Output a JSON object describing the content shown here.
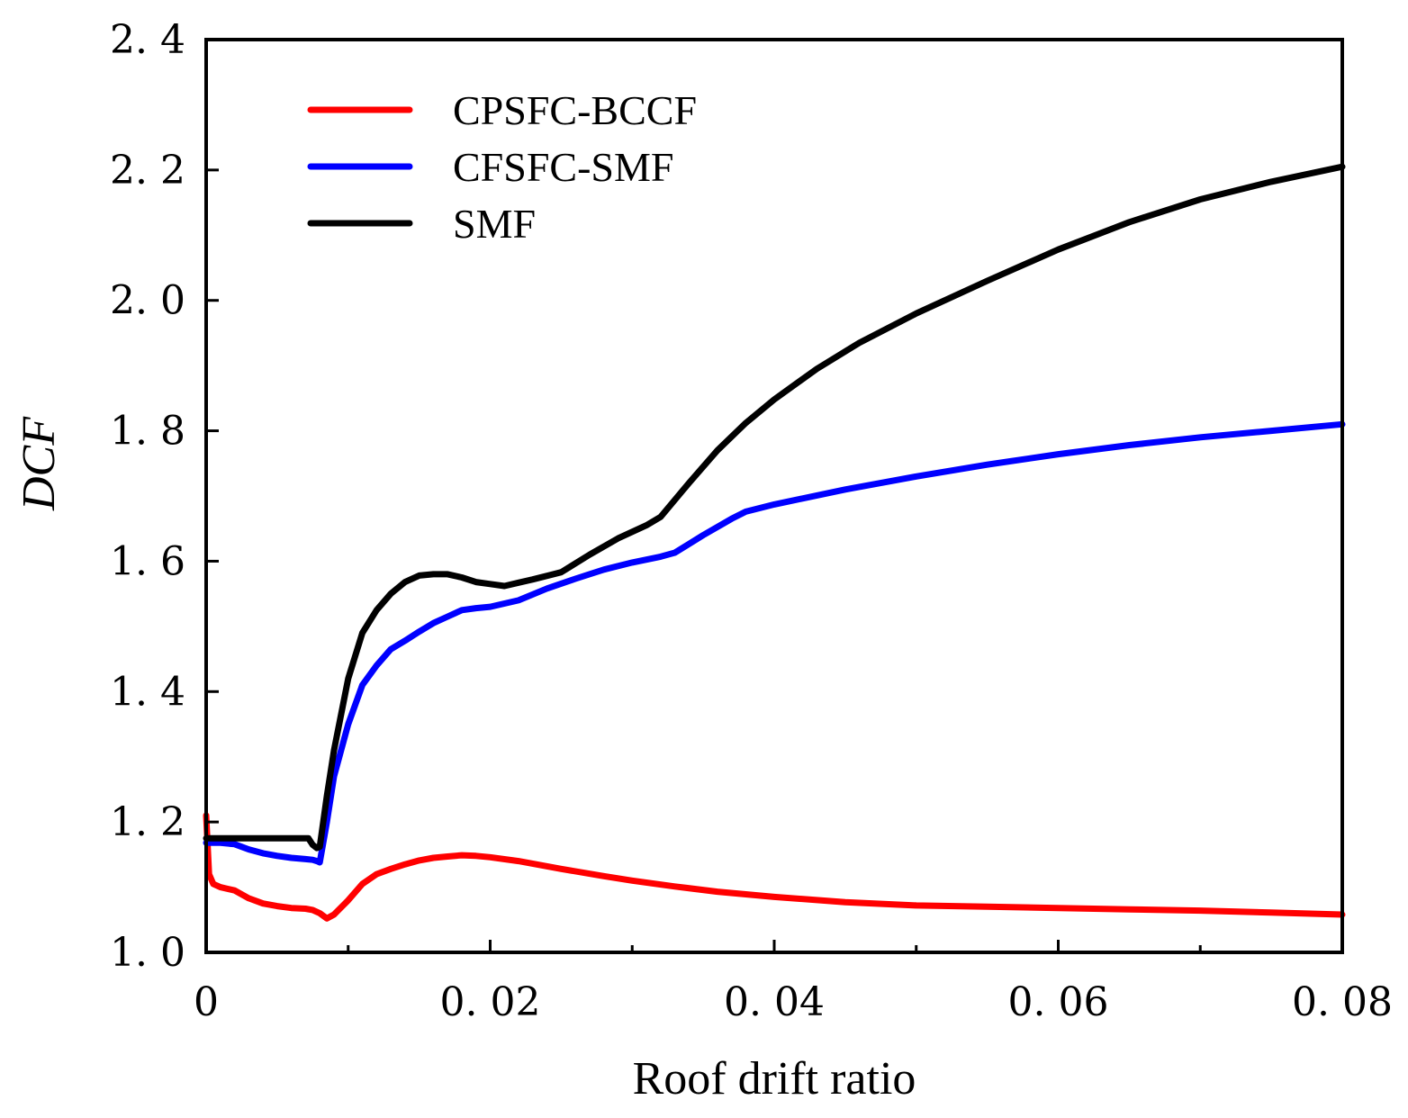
{
  "chart_data": {
    "type": "line",
    "title": "",
    "xlabel": "Roof drift ratio",
    "ylabel": "DCF",
    "xlim": [
      0,
      0.08
    ],
    "ylim": [
      1.0,
      2.4
    ],
    "xticks": [
      {
        "value": 0,
        "label": "0"
      },
      {
        "value": 0.02,
        "label": "0. 02"
      },
      {
        "value": 0.04,
        "label": "0. 04"
      },
      {
        "value": 0.06,
        "label": "0. 06"
      },
      {
        "value": 0.08,
        "label": "0. 08"
      }
    ],
    "xminor": [
      0.01,
      0.03,
      0.05,
      0.07
    ],
    "yticks": [
      {
        "value": 1.0,
        "label": "1. 0"
      },
      {
        "value": 1.2,
        "label": "1. 2"
      },
      {
        "value": 1.4,
        "label": "1. 4"
      },
      {
        "value": 1.6,
        "label": "1. 6"
      },
      {
        "value": 1.8,
        "label": "1. 8"
      },
      {
        "value": 2.0,
        "label": "2. 0"
      },
      {
        "value": 2.2,
        "label": "2. 2"
      },
      {
        "value": 2.4,
        "label": "2. 4"
      }
    ],
    "grid": false,
    "legend_position": "top-left",
    "series": [
      {
        "name": "CPSFC-BCCF",
        "color": "#ff0000",
        "x": [
          0,
          0.0002,
          0.0005,
          0.001,
          0.002,
          0.003,
          0.004,
          0.005,
          0.006,
          0.007,
          0.0075,
          0.008,
          0.0085,
          0.009,
          0.01,
          0.011,
          0.012,
          0.013,
          0.014,
          0.015,
          0.016,
          0.017,
          0.018,
          0.019,
          0.02,
          0.022,
          0.025,
          0.028,
          0.03,
          0.033,
          0.036,
          0.04,
          0.045,
          0.05,
          0.055,
          0.06,
          0.065,
          0.07,
          0.075,
          0.08
        ],
        "y": [
          1.21,
          1.12,
          1.105,
          1.1,
          1.095,
          1.083,
          1.075,
          1.071,
          1.068,
          1.067,
          1.065,
          1.06,
          1.052,
          1.058,
          1.08,
          1.105,
          1.12,
          1.128,
          1.135,
          1.141,
          1.145,
          1.147,
          1.149,
          1.148,
          1.146,
          1.14,
          1.128,
          1.117,
          1.11,
          1.101,
          1.093,
          1.085,
          1.077,
          1.072,
          1.07,
          1.068,
          1.066,
          1.064,
          1.061,
          1.058
        ]
      },
      {
        "name": "CFSFC-SMF",
        "color": "#0000ff",
        "x": [
          0,
          0.001,
          0.002,
          0.003,
          0.004,
          0.005,
          0.006,
          0.007,
          0.0075,
          0.0078,
          0.008,
          0.0085,
          0.009,
          0.01,
          0.011,
          0.012,
          0.013,
          0.014,
          0.015,
          0.016,
          0.017,
          0.018,
          0.019,
          0.02,
          0.022,
          0.024,
          0.026,
          0.028,
          0.03,
          0.032,
          0.033,
          0.035,
          0.037,
          0.038,
          0.04,
          0.045,
          0.05,
          0.055,
          0.06,
          0.065,
          0.07,
          0.075,
          0.08
        ],
        "y": [
          1.168,
          1.168,
          1.166,
          1.158,
          1.152,
          1.148,
          1.145,
          1.143,
          1.142,
          1.14,
          1.138,
          1.2,
          1.27,
          1.35,
          1.41,
          1.44,
          1.465,
          1.478,
          1.492,
          1.505,
          1.515,
          1.525,
          1.528,
          1.53,
          1.54,
          1.558,
          1.573,
          1.587,
          1.598,
          1.607,
          1.613,
          1.64,
          1.665,
          1.676,
          1.687,
          1.71,
          1.73,
          1.748,
          1.764,
          1.778,
          1.79,
          1.8,
          1.81
        ]
      },
      {
        "name": "SMF",
        "color": "#000000",
        "x": [
          0,
          0.002,
          0.004,
          0.006,
          0.0072,
          0.0075,
          0.0078,
          0.008,
          0.0085,
          0.009,
          0.01,
          0.011,
          0.012,
          0.013,
          0.014,
          0.015,
          0.016,
          0.017,
          0.018,
          0.019,
          0.02,
          0.021,
          0.022,
          0.023,
          0.025,
          0.027,
          0.029,
          0.031,
          0.032,
          0.034,
          0.036,
          0.038,
          0.04,
          0.043,
          0.046,
          0.05,
          0.055,
          0.06,
          0.065,
          0.07,
          0.075,
          0.08
        ],
        "y": [
          1.175,
          1.175,
          1.175,
          1.175,
          1.175,
          1.165,
          1.16,
          1.162,
          1.24,
          1.31,
          1.42,
          1.49,
          1.525,
          1.55,
          1.568,
          1.578,
          1.58,
          1.58,
          1.575,
          1.568,
          1.565,
          1.562,
          1.567,
          1.572,
          1.583,
          1.61,
          1.635,
          1.655,
          1.668,
          1.72,
          1.77,
          1.812,
          1.848,
          1.895,
          1.935,
          1.98,
          2.03,
          2.078,
          2.12,
          2.155,
          2.182,
          2.205
        ]
      }
    ]
  }
}
